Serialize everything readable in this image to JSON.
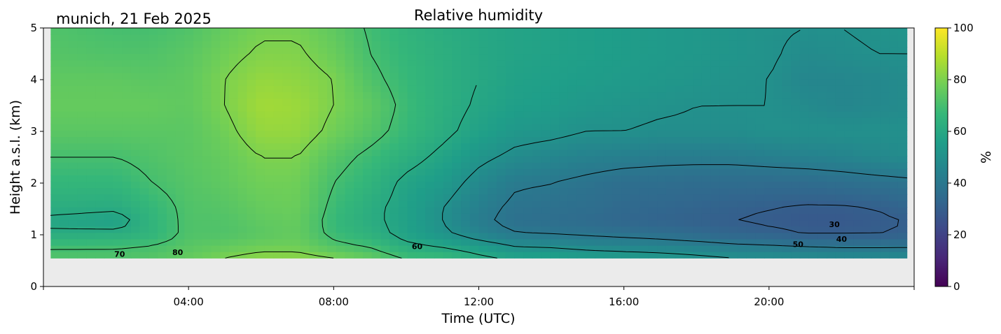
{
  "chart_data": {
    "type": "heatmap",
    "variant": "filled-contour time-height cross-section",
    "title": "Relative humidity",
    "subtitle": "munich, 21 Feb 2025",
    "xlabel": "Time (UTC)",
    "ylabel": "Height a.s.l. (km)",
    "colorbar_label": "%",
    "colormap": "viridis",
    "colormap_stops": [
      "#440154",
      "#482878",
      "#3e4989",
      "#31688e",
      "#26828e",
      "#1f9e89",
      "#35b779",
      "#6ece58",
      "#b5de2b",
      "#fde725"
    ],
    "no_data_color": "#ebebeb",
    "xlim_hours": [
      0,
      24
    ],
    "ylim_km": [
      0,
      5
    ],
    "clim": [
      0,
      100
    ],
    "x_ticks": [
      {
        "hour": 4,
        "label": "04:00"
      },
      {
        "hour": 8,
        "label": "08:00"
      },
      {
        "hour": 12,
        "label": "12:00"
      },
      {
        "hour": 16,
        "label": "16:00"
      },
      {
        "hour": 20,
        "label": "20:00"
      }
    ],
    "y_ticks": [
      {
        "value": 0,
        "label": "0"
      },
      {
        "value": 1,
        "label": "1"
      },
      {
        "value": 2,
        "label": "2"
      },
      {
        "value": 3,
        "label": "3"
      },
      {
        "value": 4,
        "label": "4"
      },
      {
        "value": 5,
        "label": "5"
      }
    ],
    "colorbar_ticks": [
      {
        "value": 0,
        "label": "0"
      },
      {
        "value": 20,
        "label": "20"
      },
      {
        "value": 40,
        "label": "40"
      },
      {
        "value": 60,
        "label": "60"
      },
      {
        "value": 80,
        "label": "80"
      },
      {
        "value": 100,
        "label": "100"
      }
    ],
    "data_bottom_km": 0.55,
    "time_hours": [
      0.2,
      2.0,
      3.0,
      4.0,
      5.0,
      6.0,
      7.0,
      8.0,
      9.0,
      10.0,
      11.0,
      12.0,
      13.0,
      14.0,
      15.0,
      16.0,
      17.0,
      18.0,
      19.0,
      20.0,
      21.0,
      22.0,
      23.0,
      23.8
    ],
    "heights_km": [
      0.55,
      0.75,
      1.0,
      1.25,
      1.5,
      2.0,
      2.5,
      3.0,
      3.5,
      4.0,
      4.5,
      5.0
    ],
    "rh_percent": [
      [
        72,
        72,
        73,
        76,
        80,
        83,
        83,
        80,
        76,
        69,
        68,
        62,
        58,
        58,
        56,
        55,
        54,
        52,
        50,
        50,
        49,
        48,
        48,
        48
      ],
      [
        70,
        70,
        71,
        74,
        76,
        78,
        78,
        73,
        70,
        63,
        60,
        56,
        51,
        50,
        48,
        47,
        46,
        45,
        43,
        42,
        41,
        40,
        40,
        40
      ],
      [
        62,
        63,
        65,
        72,
        72,
        74,
        76,
        68,
        64,
        57,
        52,
        46,
        41,
        40,
        39,
        38,
        37,
        35,
        33,
        32,
        30,
        30,
        30,
        31
      ],
      [
        58,
        56,
        65,
        72,
        72,
        75,
        76,
        67,
        62,
        57,
        50,
        42,
        37,
        36,
        35,
        33,
        32,
        31,
        30,
        29,
        28,
        28,
        29,
        30
      ],
      [
        62,
        61,
        66,
        72,
        73,
        76,
        77,
        68,
        62,
        57,
        50,
        43,
        38,
        37,
        36,
        34,
        33,
        32,
        31,
        30,
        29,
        29,
        30,
        32
      ],
      [
        66,
        66,
        70,
        73,
        75,
        78,
        78,
        70,
        65,
        58,
        54,
        47,
        41,
        40,
        38,
        36,
        36,
        35,
        35,
        35,
        35,
        36,
        37,
        38
      ],
      [
        70,
        70,
        72,
        74,
        76,
        80,
        80,
        73,
        68,
        63,
        58,
        52,
        48,
        46,
        44,
        43,
        42,
        42,
        42,
        43,
        44,
        45,
        47,
        48
      ],
      [
        74,
        74,
        74,
        74,
        78,
        84,
        84,
        78,
        73,
        67,
        62,
        57,
        53,
        52,
        50,
        50,
        49,
        49,
        49,
        50,
        50,
        50,
        50,
        50
      ],
      [
        76,
        76,
        76,
        75,
        80,
        86,
        85,
        80,
        75,
        68,
        63,
        59,
        56,
        55,
        53,
        52,
        51,
        50,
        50,
        50,
        48,
        46,
        47,
        48
      ],
      [
        75,
        75,
        74,
        75,
        80,
        84,
        83,
        80,
        72,
        67,
        63,
        60,
        57,
        56,
        55,
        54,
        53,
        52,
        51,
        50,
        46,
        46,
        47,
        48
      ],
      [
        73,
        72,
        72,
        74,
        78,
        81,
        81,
        77,
        70,
        66,
        63,
        60,
        58,
        57,
        56,
        55,
        54,
        53,
        52,
        51,
        48,
        49,
        50,
        50
      ],
      [
        72,
        70,
        70,
        72,
        76,
        79,
        79,
        75,
        69,
        65,
        62,
        60,
        58,
        57,
        56,
        55,
        54,
        53,
        52,
        51,
        50,
        50,
        51,
        52
      ]
    ],
    "contour_levels": [
      30,
      40,
      50,
      60,
      70,
      80
    ],
    "contour_labels": [
      {
        "text": "70",
        "hour": 2.1,
        "km": 0.63
      },
      {
        "text": "80",
        "hour": 3.7,
        "km": 0.66
      },
      {
        "text": "60",
        "hour": 10.3,
        "km": 0.78
      },
      {
        "text": "50",
        "hour": 20.8,
        "km": 0.82
      },
      {
        "text": "40",
        "hour": 22.0,
        "km": 0.92
      },
      {
        "text": "30",
        "hour": 21.8,
        "km": 1.2
      }
    ]
  }
}
